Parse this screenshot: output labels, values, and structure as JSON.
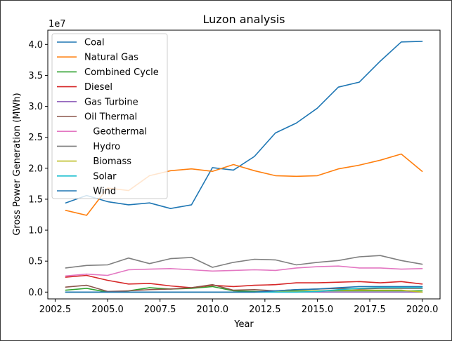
{
  "chart_data": {
    "type": "line",
    "title": "Luzon analysis",
    "xlabel": "Year",
    "ylabel": "Gross Power Generation (MWh)",
    "y_scale_label": "1e7",
    "xlim": [
      2002.15,
      2020.85
    ],
    "ylim": [
      -0.11,
      4.23
    ],
    "x_ticks": [
      2002.5,
      2005.0,
      2007.5,
      2010.0,
      2012.5,
      2015.0,
      2017.5,
      2020.0
    ],
    "x_tick_labels": [
      "2002.5",
      "2005.0",
      "2007.5",
      "2010.0",
      "2012.5",
      "2015.0",
      "2017.5",
      "2020.0"
    ],
    "y_ticks": [
      0.0,
      0.5,
      1.0,
      1.5,
      2.0,
      2.5,
      3.0,
      3.5,
      4.0
    ],
    "y_tick_labels": [
      "0.0",
      "0.5",
      "1.0",
      "1.5",
      "2.0",
      "2.5",
      "3.0",
      "3.5",
      "4.0"
    ],
    "grid": false,
    "legend_position": "upper-left",
    "x": [
      2003,
      2004,
      2005,
      2006,
      2007,
      2008,
      2009,
      2010,
      2011,
      2012,
      2013,
      2014,
      2015,
      2016,
      2017,
      2018,
      2019,
      2020
    ],
    "series": [
      {
        "name": "Coal",
        "color": "#1f77b4",
        "values": [
          1.44,
          1.56,
          1.46,
          1.41,
          1.44,
          1.35,
          1.41,
          2.01,
          1.97,
          2.19,
          2.57,
          2.73,
          2.97,
          3.31,
          3.39,
          3.73,
          4.04,
          4.05
        ]
      },
      {
        "name": "Natural Gas",
        "color": "#ff7f0e",
        "values": [
          1.32,
          1.24,
          1.68,
          1.64,
          1.88,
          1.96,
          1.99,
          1.95,
          2.06,
          1.96,
          1.88,
          1.87,
          1.88,
          1.99,
          2.05,
          2.13,
          2.23,
          1.95
        ]
      },
      {
        "name": "Combined Cycle",
        "color": "#2ca02c",
        "values": [
          0.03,
          0.06,
          0.0,
          0.02,
          0.07,
          0.05,
          0.06,
          0.09,
          0.02,
          0.01,
          0.01,
          0.02,
          0.02,
          0.02,
          0.02,
          0.02,
          0.02,
          0.02
        ]
      },
      {
        "name": "Diesel",
        "color": "#d62728",
        "values": [
          0.24,
          0.27,
          0.19,
          0.13,
          0.14,
          0.1,
          0.07,
          0.11,
          0.09,
          0.11,
          0.12,
          0.15,
          0.15,
          0.16,
          0.17,
          0.15,
          0.17,
          0.13
        ]
      },
      {
        "name": "Gas Turbine",
        "color": "#9467bd",
        "values": [
          0.0,
          0.0,
          0.0,
          0.0,
          0.0,
          0.0,
          0.0,
          0.0,
          0.0,
          0.0,
          0.0,
          0.0,
          0.0,
          0.0,
          0.0,
          0.0,
          0.0,
          0.0
        ]
      },
      {
        "name": "Oil Thermal",
        "color": "#8c564b",
        "values": [
          0.08,
          0.11,
          0.01,
          0.02,
          0.04,
          0.05,
          0.07,
          0.12,
          0.03,
          0.04,
          0.02,
          0.04,
          0.05,
          0.06,
          0.05,
          0.06,
          0.06,
          0.06
        ]
      },
      {
        "name": "   Geothermal",
        "color": "#e377c2",
        "values": [
          0.26,
          0.29,
          0.27,
          0.36,
          0.37,
          0.38,
          0.36,
          0.34,
          0.35,
          0.36,
          0.35,
          0.39,
          0.41,
          0.42,
          0.39,
          0.39,
          0.37,
          0.38
        ]
      },
      {
        "name": "   Hydro",
        "color": "#7f7f7f",
        "values": [
          0.39,
          0.43,
          0.44,
          0.55,
          0.46,
          0.54,
          0.56,
          0.4,
          0.48,
          0.53,
          0.52,
          0.44,
          0.48,
          0.51,
          0.57,
          0.59,
          0.51,
          0.45
        ]
      },
      {
        "name": "   Biomass",
        "color": "#bcbd22",
        "values": [
          0.0,
          0.0,
          0.0,
          0.0,
          0.0,
          0.0,
          0.0,
          0.0,
          0.0,
          0.0,
          0.01,
          0.01,
          0.02,
          0.03,
          0.03,
          0.03,
          0.03,
          0.0
        ]
      },
      {
        "name": "   Solar",
        "color": "#17becf",
        "values": [
          0.0,
          0.0,
          0.0,
          0.0,
          0.0,
          0.0,
          0.0,
          0.0,
          0.0,
          0.0,
          0.0,
          0.0,
          0.01,
          0.04,
          0.06,
          0.07,
          0.07,
          0.07
        ]
      },
      {
        "name": "   Wind",
        "color": "#1f77b4",
        "values": [
          0.0,
          0.0,
          0.0,
          0.0,
          0.0,
          0.0,
          0.0,
          0.0,
          0.0,
          0.0,
          0.02,
          0.04,
          0.05,
          0.07,
          0.09,
          0.09,
          0.09,
          0.09
        ]
      }
    ]
  }
}
